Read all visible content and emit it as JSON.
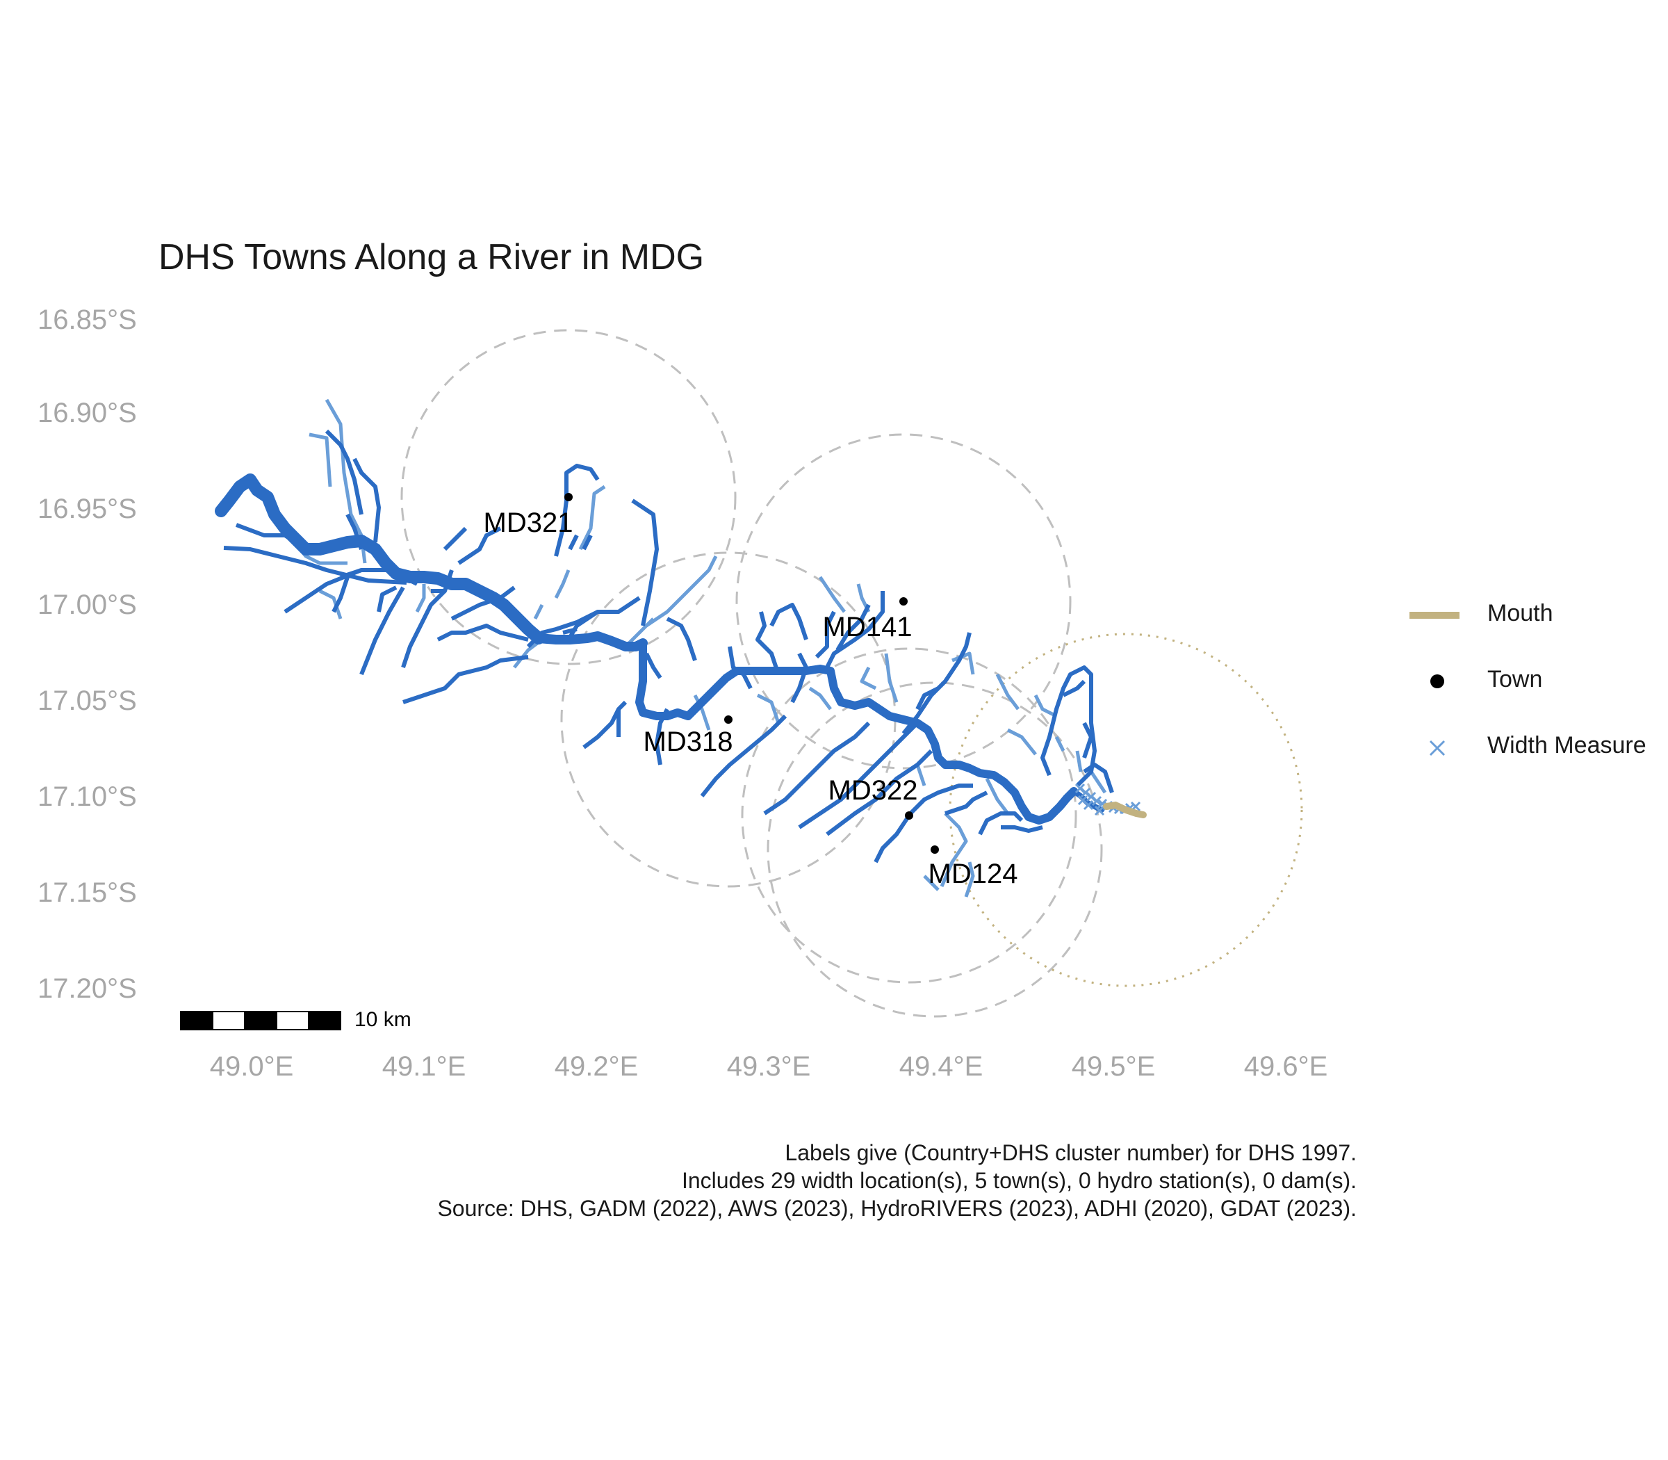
{
  "title": "DHS Towns Along a River in MDG",
  "axes": {
    "y_ticks": [
      "16.85°S",
      "16.90°S",
      "16.95°S",
      "17.00°S",
      "17.05°S",
      "17.10°S",
      "17.15°S",
      "17.20°S"
    ],
    "x_ticks": [
      "49.0°E",
      "49.1°E",
      "49.2°E",
      "49.3°E",
      "49.4°E",
      "49.5°E",
      "49.6°E"
    ]
  },
  "towns": [
    {
      "label": "MD321",
      "lon": 49.185,
      "lat": -16.943
    },
    {
      "label": "MD141",
      "lon": 49.38,
      "lat": -16.998
    },
    {
      "label": "MD318",
      "lon": 49.278,
      "lat": -17.058
    },
    {
      "label": "MD322",
      "lon": 49.381,
      "lat": -17.108
    },
    {
      "label": "MD124",
      "lon": 49.395,
      "lat": -17.127
    }
  ],
  "legend": {
    "mouth": "Mouth",
    "town": "Town",
    "width_measure": "Width Measure"
  },
  "scale_bar": {
    "label": "10 km"
  },
  "caption": {
    "line1": "Labels give (Country+DHS cluster number) for DHS 1997.",
    "line2": "Includes 29 width location(s), 5 town(s), 0 hydro station(s), 0 dam(s).",
    "line3": "Source: DHS, GADM (2022), AWS (2023), HydroRIVERS (2023), ADHI (2020), GDAT (2023)."
  },
  "colors": {
    "river_main": "#2b6cc4",
    "river_trib": "#6a9ed8",
    "mouth": "#c2b280",
    "buffer": "#bfbfbf",
    "axis_text": "#a6a6a6"
  }
}
